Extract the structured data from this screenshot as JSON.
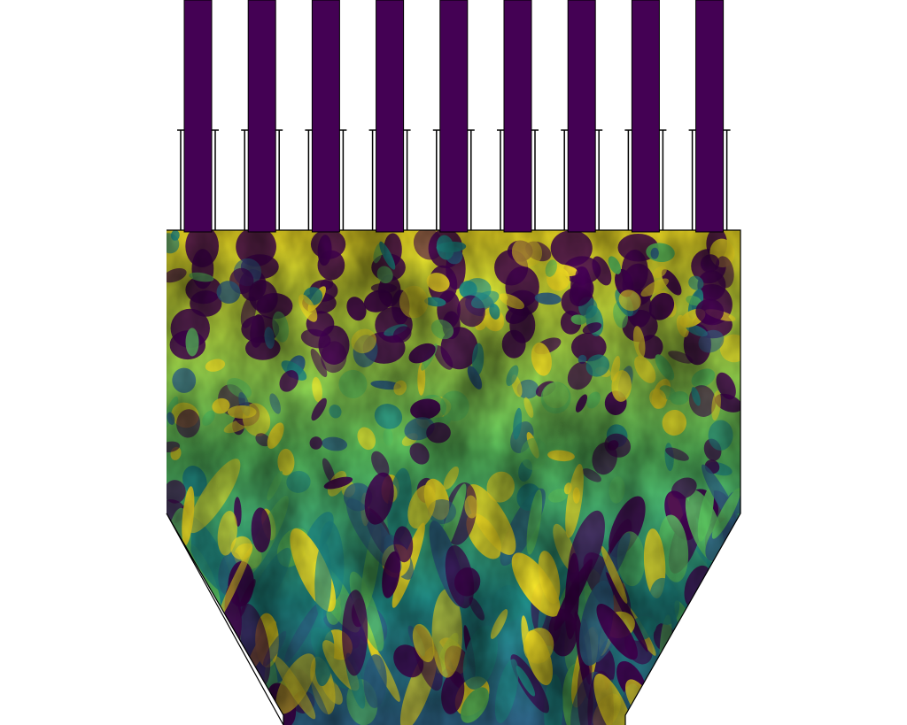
{
  "scene": {
    "subject": "turbulent-jet-mixing-field",
    "inlet_count": 9,
    "colors": {
      "background": "#ffffff",
      "outline": "#000000",
      "low": "#440154",
      "mid_low": "#31688e",
      "mid": "#21918c",
      "mid_high": "#5ec962",
      "high": "#fde725"
    }
  }
}
